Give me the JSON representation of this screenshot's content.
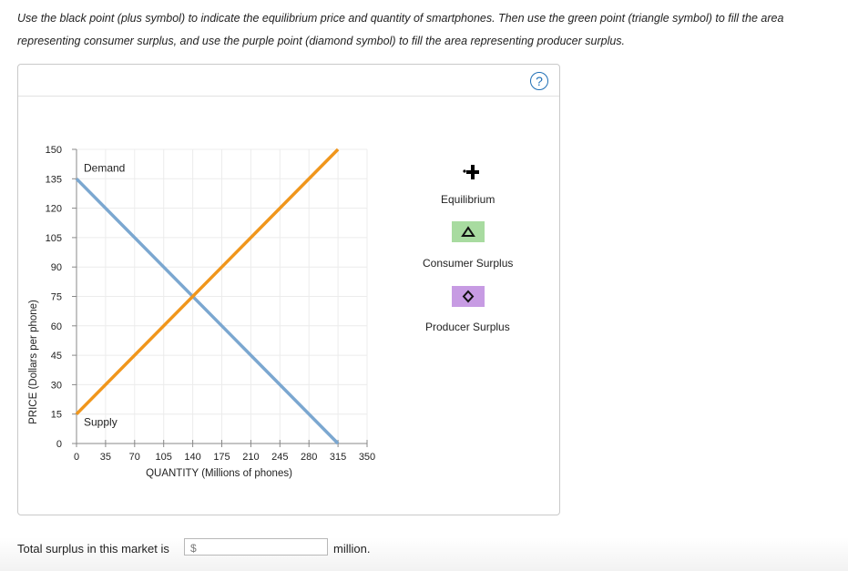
{
  "instructions": "Use the black point (plus symbol) to indicate the equilibrium price and quantity of smartphones. Then use the green point (triangle symbol) to fill the area representing consumer surplus, and use the purple point (diamond symbol) to fill the area representing producer surplus.",
  "help_label": "?",
  "chart_data": {
    "type": "line",
    "xlabel": "QUANTITY (Millions of phones)",
    "ylabel": "PRICE (Dollars per phone)",
    "xlim": [
      0,
      350
    ],
    "ylim": [
      0,
      150
    ],
    "x_ticks": [
      0,
      35,
      70,
      105,
      140,
      175,
      210,
      245,
      280,
      315,
      350
    ],
    "y_ticks": [
      0,
      15,
      30,
      45,
      60,
      75,
      90,
      105,
      120,
      135,
      150
    ],
    "series": [
      {
        "name": "Demand",
        "color": "#7ba7d0",
        "points": [
          [
            0,
            135
          ],
          [
            315,
            0
          ]
        ]
      },
      {
        "name": "Supply",
        "color": "#f0961c",
        "points": [
          [
            0,
            15
          ],
          [
            315,
            150
          ]
        ]
      }
    ],
    "grid": true
  },
  "tools": {
    "equilibrium": {
      "label": "Equilibrium",
      "icon": "plus-icon",
      "color": "#000000"
    },
    "consumer_surplus": {
      "label": "Consumer Surplus",
      "icon": "triangle-icon",
      "color": "#a8dba0"
    },
    "producer_surplus": {
      "label": "Producer Surplus",
      "icon": "diamond-icon",
      "color": "#c79be3"
    }
  },
  "answer": {
    "prefix": "Total surplus in this market is",
    "currency": "$",
    "value": "",
    "suffix": "million."
  }
}
